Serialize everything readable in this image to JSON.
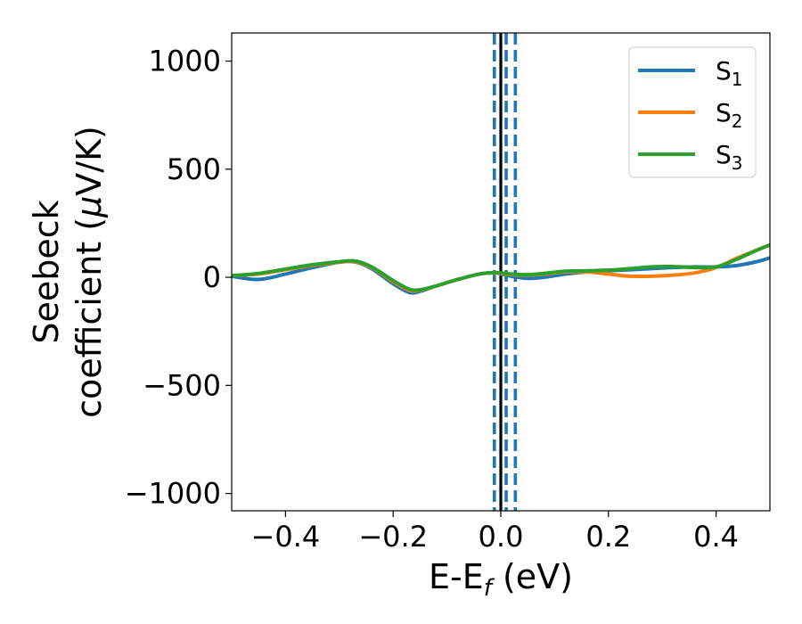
{
  "chart_data": {
    "type": "line",
    "xlabel": {
      "main": "E-E",
      "sub": "f",
      "unit": " (eV)"
    },
    "ylabel": {
      "line1": "Seebeck",
      "line2_pre": "coefficient  (",
      "mu": "μ",
      "line2_post": "V/K)"
    },
    "xlim": [
      -0.5,
      0.5
    ],
    "ylim": [
      -1080,
      1130
    ],
    "xticks": [
      {
        "v": -0.4,
        "label": "−0.4"
      },
      {
        "v": -0.2,
        "label": "−0.2"
      },
      {
        "v": 0.0,
        "label": "0.0"
      },
      {
        "v": 0.2,
        "label": "0.2"
      },
      {
        "v": 0.4,
        "label": "0.4"
      }
    ],
    "yticks": [
      {
        "v": 1000,
        "label": "1000"
      },
      {
        "v": 500,
        "label": "500"
      },
      {
        "v": 0,
        "label": "0"
      },
      {
        "v": -500,
        "label": "−500"
      },
      {
        "v": -1000,
        "label": "−1000"
      }
    ],
    "grid": false,
    "legend_position": "top-right",
    "series": [
      {
        "name_main": "S",
        "name_sub": "1",
        "color": "#1f77b4",
        "x": [
          -0.5,
          -0.45,
          -0.4,
          -0.35,
          -0.3,
          -0.27,
          -0.24,
          -0.2,
          -0.17,
          -0.15,
          -0.12,
          -0.08,
          -0.04,
          -0.01,
          0.02,
          0.05,
          0.08,
          0.12,
          0.16,
          0.2,
          0.24,
          0.28,
          0.32,
          0.36,
          0.4,
          0.44,
          0.48,
          0.5
        ],
        "y": [
          5,
          -10,
          15,
          45,
          70,
          70,
          40,
          -30,
          -70,
          -65,
          -40,
          -10,
          15,
          20,
          5,
          -5,
          0,
          15,
          25,
          30,
          35,
          40,
          45,
          48,
          48,
          55,
          75,
          90
        ]
      },
      {
        "name_main": "S",
        "name_sub": "2",
        "color": "#ff7f0e",
        "x": [
          -0.5,
          -0.45,
          -0.4,
          -0.35,
          -0.3,
          -0.27,
          -0.24,
          -0.2,
          -0.17,
          -0.15,
          -0.12,
          -0.08,
          -0.04,
          -0.01,
          0.02,
          0.05,
          0.08,
          0.12,
          0.16,
          0.2,
          0.24,
          0.28,
          0.32,
          0.36,
          0.4,
          0.44,
          0.48,
          0.5
        ],
        "y": [
          8,
          15,
          35,
          55,
          70,
          72,
          45,
          -20,
          -60,
          -60,
          -40,
          -10,
          15,
          20,
          12,
          10,
          15,
          25,
          25,
          15,
          5,
          5,
          10,
          20,
          45,
          90,
          130,
          150
        ]
      },
      {
        "name_main": "S",
        "name_sub": "3",
        "color": "#2ca02c",
        "x": [
          -0.5,
          -0.45,
          -0.4,
          -0.35,
          -0.3,
          -0.27,
          -0.24,
          -0.2,
          -0.17,
          -0.15,
          -0.12,
          -0.08,
          -0.04,
          -0.01,
          0.02,
          0.05,
          0.08,
          0.12,
          0.16,
          0.2,
          0.24,
          0.28,
          0.32,
          0.36,
          0.4,
          0.44,
          0.48,
          0.5
        ],
        "y": [
          8,
          18,
          38,
          58,
          72,
          75,
          48,
          -15,
          -55,
          -58,
          -40,
          -10,
          15,
          22,
          15,
          12,
          18,
          28,
          30,
          33,
          40,
          48,
          50,
          45,
          48,
          85,
          130,
          150
        ]
      }
    ],
    "vlines": [
      {
        "x": -0.012,
        "color": "#1f77b4",
        "style": "dashed"
      },
      {
        "x": 0.01,
        "color": "#1f77b4",
        "style": "dashed"
      },
      {
        "x": 0.027,
        "color": "#1f77b4",
        "style": "dashed"
      },
      {
        "x": 0.0,
        "color": "#000000",
        "style": "solid"
      }
    ]
  }
}
